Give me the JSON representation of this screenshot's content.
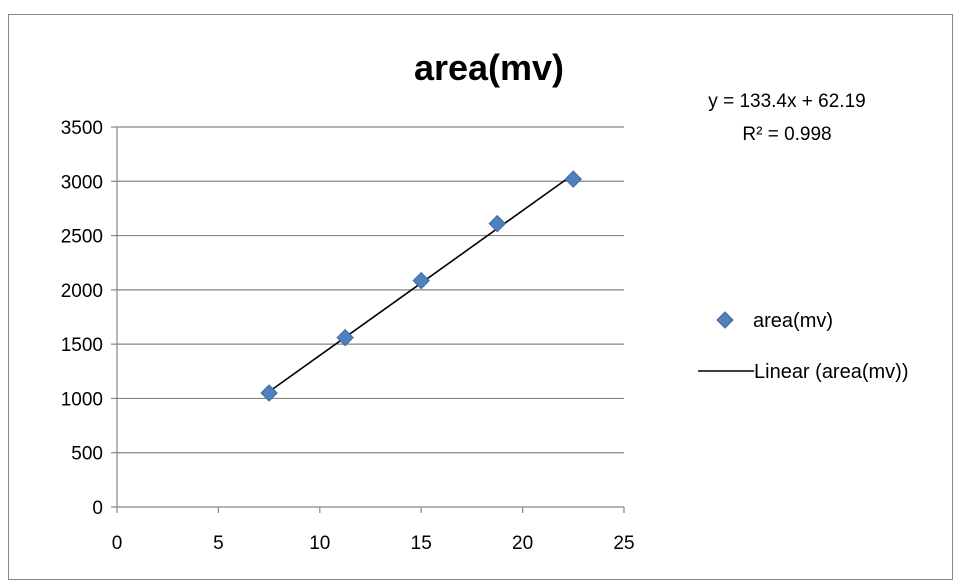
{
  "chart_data": {
    "type": "scatter",
    "title": "area(mv)",
    "xlabel": "",
    "ylabel": "",
    "xlim": [
      0,
      25
    ],
    "ylim": [
      0,
      3500
    ],
    "xticks": [
      "0",
      "5",
      "10",
      "15",
      "20",
      "25"
    ],
    "yticks": [
      "0",
      "500",
      "1000",
      "1500",
      "2000",
      "2500",
      "3000",
      "3500"
    ],
    "grid": "horizontal",
    "legend_position": "right",
    "series": [
      {
        "name": "area(mv)",
        "marker": "diamond",
        "color": "#4F81BD",
        "x": [
          7.5,
          11.25,
          15.0,
          18.75,
          22.5
        ],
        "y": [
          1050,
          1560,
          2085,
          2610,
          3020
        ]
      }
    ],
    "trendline": {
      "name": "Linear (area(mv))",
      "color": "#000000",
      "slope": 133.4,
      "intercept": 62.19,
      "x_range": [
        7.5,
        22.5
      ],
      "equation_label": "y = 133.4x + 62.19",
      "r2_label": "R² = 0.998"
    }
  }
}
